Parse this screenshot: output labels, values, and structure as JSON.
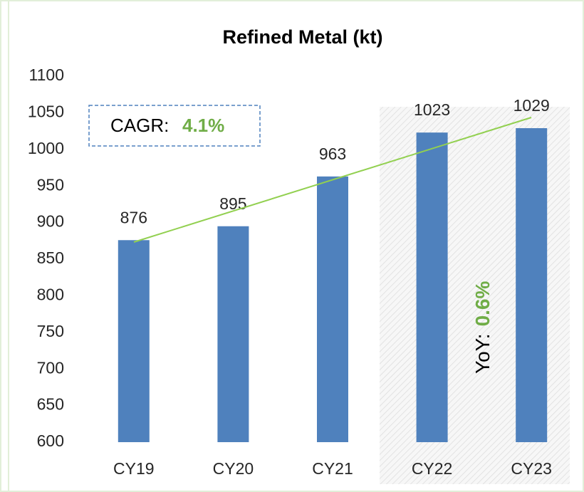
{
  "chart_data": {
    "type": "bar",
    "title": "Refined Metal (kt)",
    "categories": [
      "CY19",
      "CY20",
      "CY21",
      "CY22",
      "CY23"
    ],
    "values": [
      876,
      895,
      963,
      1023,
      1029
    ],
    "color": "#4f81bd",
    "ylim": [
      600,
      1100
    ],
    "yticks": [
      600,
      650,
      700,
      750,
      800,
      850,
      900,
      950,
      1000,
      1050,
      1100
    ],
    "annotations": {
      "cagr_label": "CAGR:",
      "cagr_value": "4.1%",
      "yoy_label": "YoY:",
      "yoy_value": "0.6%"
    }
  }
}
